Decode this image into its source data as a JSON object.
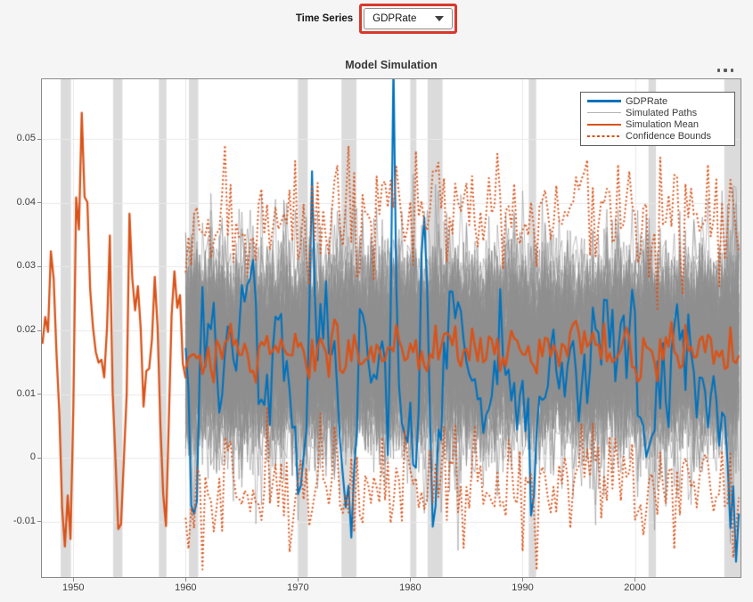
{
  "controls": {
    "time_series_label": "Time Series",
    "dropdown": {
      "value": "GDPRate"
    },
    "annotation": {
      "color": "#D8392C",
      "purpose": "red-highlight-box-around-dropdown"
    }
  },
  "icons": {
    "dropdown_arrow": "chevron-down",
    "axes_toolbar": "ellipsis-more-options"
  },
  "chart_data": {
    "type": "line",
    "title": "Model Simulation",
    "xlabel": "",
    "ylabel": "",
    "xlim": [
      1947.2,
      2009.4
    ],
    "ylim": [
      -0.0187,
      0.0594
    ],
    "grid": true,
    "x_tick_values": [
      1950,
      1960,
      1970,
      1980,
      1990,
      2000
    ],
    "x_tick_labels": [
      "1950",
      "1960",
      "1970",
      "1980",
      "1990",
      "2000"
    ],
    "y_tick_values": [
      0.05,
      0.04,
      0.03,
      0.02,
      0.01,
      0,
      -0.01
    ],
    "y_tick_labels": [
      "0.05",
      "0.04",
      "0.03",
      "0.02",
      "0.01",
      "0",
      "-0.01"
    ],
    "recession_bands": [
      [
        1948.87,
        1949.79
      ],
      [
        1953.54,
        1954.37
      ],
      [
        1957.62,
        1958.29
      ],
      [
        1960.29,
        1961.12
      ],
      [
        1969.96,
        1970.87
      ],
      [
        1973.87,
        1975.21
      ],
      [
        1980.04,
        1980.54
      ],
      [
        1981.54,
        1982.87
      ],
      [
        1990.54,
        1991.21
      ],
      [
        2001.21,
        2001.87
      ],
      [
        2007.96,
        2009.4
      ]
    ],
    "band_color": "#dbdbdb",
    "grid_color": "#e9e9e9",
    "axis_color": "#8a8a8a",
    "seed": 1337,
    "step": 0.25,
    "legend": {
      "position": "top-right",
      "entries": [
        {
          "label": "GDPRate",
          "color": "#0072BD",
          "style": "solid",
          "width": 2.5
        },
        {
          "label": "Simulated Paths",
          "color": "#b3b3b3",
          "style": "solid",
          "width": 1
        },
        {
          "label": "Simulation Mean",
          "color": "#D95319",
          "style": "solid",
          "width": 2.5
        },
        {
          "label": "Confidence Bounds",
          "color": "#D95319",
          "style": "dotted",
          "width": 2.5
        }
      ]
    },
    "series": {
      "gdprate_presample": {
        "color": "#D95319",
        "line_width": 2.3,
        "noise": 0.001,
        "keypoints": [
          [
            1947.25,
            0.0175
          ],
          [
            1947.6,
            0.022
          ],
          [
            1947.9,
            0.018
          ],
          [
            1948.05,
            0.0405
          ],
          [
            1948.35,
            0.023
          ],
          [
            1948.7,
            0.009
          ],
          [
            1949.0,
            -0.008
          ],
          [
            1949.2,
            -0.017
          ],
          [
            1949.45,
            -0.003
          ],
          [
            1949.7,
            -0.0175
          ],
          [
            1950.0,
            0.008
          ],
          [
            1950.3,
            0.0487
          ],
          [
            1950.55,
            0.032
          ],
          [
            1950.8,
            0.0589
          ],
          [
            1951.05,
            0.036
          ],
          [
            1951.25,
            0.0404
          ],
          [
            1951.6,
            0.023
          ],
          [
            1951.9,
            0.0178
          ],
          [
            1952.3,
            0.0168
          ],
          [
            1952.6,
            0.0177
          ],
          [
            1952.9,
            0.0096
          ],
          [
            1953.2,
            0.0372
          ],
          [
            1953.5,
            0.012
          ],
          [
            1953.9,
            -0.009
          ],
          [
            1954.15,
            -0.0145
          ],
          [
            1954.5,
            0.0
          ],
          [
            1954.75,
            0.01
          ],
          [
            1955.0,
            0.0369
          ],
          [
            1955.3,
            0.027
          ],
          [
            1955.6,
            0.023
          ],
          [
            1955.9,
            0.027
          ],
          [
            1956.2,
            0.0085
          ],
          [
            1956.55,
            0.016
          ],
          [
            1956.8,
            0.011
          ],
          [
            1957.1,
            0.025
          ],
          [
            1957.35,
            0.0306
          ],
          [
            1957.7,
            0.006
          ],
          [
            1958.0,
            -0.006
          ],
          [
            1958.25,
            -0.0127
          ],
          [
            1958.6,
            0.013
          ],
          [
            1958.9,
            0.0316
          ],
          [
            1959.2,
            0.023
          ],
          [
            1959.45,
            0.0285
          ],
          [
            1959.7,
            0.016
          ],
          [
            1960.0,
            0.014
          ]
        ]
      },
      "gdprate": {
        "color": "#0072BD",
        "line_width": 2.1,
        "noise": 0.004,
        "keypoints": [
          [
            1960.0,
            0.0125
          ],
          [
            1960.4,
            0.002
          ],
          [
            1960.75,
            -0.011
          ],
          [
            1961.1,
            0.004
          ],
          [
            1961.5,
            0.0205
          ],
          [
            1962.0,
            0.0135
          ],
          [
            1962.5,
            0.0215
          ],
          [
            1963.0,
            0.011
          ],
          [
            1963.5,
            0.0195
          ],
          [
            1964.2,
            0.0155
          ],
          [
            1964.8,
            0.0215
          ],
          [
            1965.5,
            0.0255
          ],
          [
            1966.0,
            0.0285
          ],
          [
            1966.6,
            0.012
          ],
          [
            1967.2,
            0.0065
          ],
          [
            1967.8,
            0.0175
          ],
          [
            1968.4,
            0.022
          ],
          [
            1969.0,
            0.0125
          ],
          [
            1969.7,
            0.004
          ],
          [
            1970.2,
            -0.0025
          ],
          [
            1970.7,
            0.001
          ],
          [
            1971.2,
            0.0433
          ],
          [
            1971.7,
            0.012
          ],
          [
            1972.3,
            0.0235
          ],
          [
            1972.9,
            0.0195
          ],
          [
            1973.4,
            0.0115
          ],
          [
            1974.0,
            -0.004
          ],
          [
            1974.6,
            -0.0085
          ],
          [
            1975.1,
            -0.0045
          ],
          [
            1975.6,
            0.0225
          ],
          [
            1976.2,
            0.0155
          ],
          [
            1976.9,
            0.011
          ],
          [
            1977.5,
            0.0195
          ],
          [
            1978.1,
            0.004
          ],
          [
            1978.5,
            0.0567
          ],
          [
            1978.9,
            0.0145
          ],
          [
            1979.4,
            0.0025
          ],
          [
            1979.9,
            0.0055
          ],
          [
            1980.6,
            -0.008
          ],
          [
            1981.1,
            0.0455
          ],
          [
            1981.6,
            0.012
          ],
          [
            1982.1,
            -0.0065
          ],
          [
            1982.6,
            0.0005
          ],
          [
            1983.1,
            0.0125
          ],
          [
            1983.6,
            0.0275
          ],
          [
            1984.1,
            0.0215
          ],
          [
            1984.7,
            0.0165
          ],
          [
            1985.3,
            0.0135
          ],
          [
            1986.0,
            0.0105
          ],
          [
            1986.7,
            0.0095
          ],
          [
            1987.3,
            0.0145
          ],
          [
            1988.0,
            0.0185
          ],
          [
            1988.7,
            0.0135
          ],
          [
            1989.4,
            0.0085
          ],
          [
            1990.1,
            0.0105
          ],
          [
            1990.8,
            -0.0055
          ],
          [
            1991.3,
            0.0035
          ],
          [
            1991.9,
            0.0095
          ],
          [
            1992.5,
            0.0155
          ],
          [
            1993.1,
            0.0085
          ],
          [
            1993.8,
            0.0125
          ],
          [
            1994.4,
            0.0175
          ],
          [
            1995.1,
            0.0055
          ],
          [
            1995.8,
            0.0135
          ],
          [
            1996.4,
            0.0215
          ],
          [
            1997.1,
            0.0185
          ],
          [
            1997.8,
            0.0165
          ],
          [
            1998.5,
            0.0195
          ],
          [
            1999.2,
            0.0155
          ],
          [
            1999.9,
            0.0235
          ],
          [
            2000.5,
            0.0035
          ],
          [
            2001.1,
            -0.0025
          ],
          [
            2001.8,
            0.0055
          ],
          [
            2002.4,
            0.0105
          ],
          [
            2003.0,
            0.0075
          ],
          [
            2003.7,
            0.0255
          ],
          [
            2004.4,
            0.0135
          ],
          [
            2005.1,
            0.0155
          ],
          [
            2005.8,
            0.0105
          ],
          [
            2006.5,
            0.0045
          ],
          [
            2007.2,
            0.0125
          ],
          [
            2007.9,
            0.0065
          ],
          [
            2008.4,
            -0.0015
          ],
          [
            2008.8,
            -0.01
          ],
          [
            2009.1,
            -0.012
          ],
          [
            2009.4,
            -0.015
          ]
        ]
      },
      "simulation_mean": {
        "color": "#D95319",
        "line_width": 2.5,
        "start": 1960.0,
        "end": 2009.4,
        "first": 0.014,
        "base": 0.0168,
        "ar": 0.25,
        "sigma": 0.0023
      },
      "confidence_bounds": {
        "color": "#D95319",
        "line_width": 1.9,
        "dash": [
          2,
          2.6
        ],
        "offset": 0.021,
        "sigma": 0.0045
      },
      "simulated_paths": {
        "color": "#8f8f8f",
        "alpha": 0.75,
        "line_width": 0.75,
        "count": 120,
        "start": 1960.0,
        "end": 2009.4,
        "mean": 0.0168,
        "phi": 0.3,
        "sigma": 0.0068
      }
    }
  }
}
